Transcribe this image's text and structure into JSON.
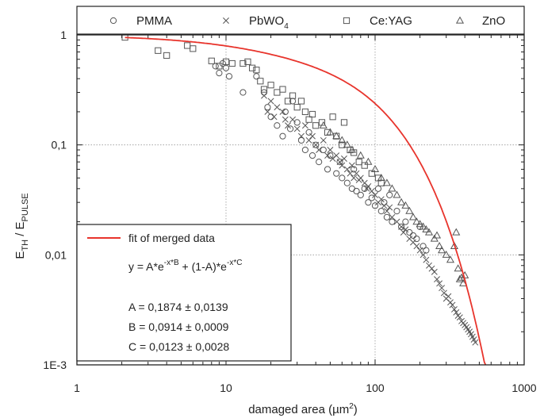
{
  "chart_data": {
    "type": "scatter",
    "title": "",
    "xlabel": "damaged area (µm²)",
    "xlabel_main": "damaged area (",
    "xlabel_unit": "µm",
    "xlabel_exp": "2",
    "xlabel_close": ")",
    "ylabel_main": "E",
    "ylabel_sub1": "TH",
    "ylabel_sep": " / E",
    "ylabel_sub2": "PULSE",
    "x_scale": "log",
    "y_scale": "log",
    "xlim": [
      1,
      1000
    ],
    "ylim": [
      0.001,
      1
    ],
    "x_ticks": [
      1,
      10,
      100,
      1000
    ],
    "x_tick_labels": [
      "1",
      "10",
      "100",
      "1000"
    ],
    "y_ticks": [
      0.001,
      0.01,
      0.1,
      1
    ],
    "y_tick_labels": [
      "1E-3",
      "0,01",
      "0,1",
      "1"
    ],
    "grid": true,
    "legend_position": "top",
    "series": [
      {
        "name": "PMMA",
        "name_main": "PMMA",
        "marker": "circle",
        "points": [
          [
            8.5,
            0.52
          ],
          [
            9,
            0.45
          ],
          [
            9.5,
            0.55
          ],
          [
            10,
            0.5
          ],
          [
            10.5,
            0.42
          ],
          [
            13,
            0.3
          ],
          [
            16,
            0.42
          ],
          [
            18,
            0.3
          ],
          [
            19,
            0.22
          ],
          [
            20,
            0.18
          ],
          [
            22,
            0.15
          ],
          [
            24,
            0.12
          ],
          [
            25,
            0.2
          ],
          [
            27,
            0.14
          ],
          [
            28,
            0.25
          ],
          [
            30,
            0.16
          ],
          [
            32,
            0.11
          ],
          [
            34,
            0.09
          ],
          [
            36,
            0.13
          ],
          [
            38,
            0.08
          ],
          [
            40,
            0.1
          ],
          [
            42,
            0.07
          ],
          [
            45,
            0.09
          ],
          [
            48,
            0.06
          ],
          [
            50,
            0.08
          ],
          [
            55,
            0.055
          ],
          [
            58,
            0.07
          ],
          [
            60,
            0.05
          ],
          [
            65,
            0.045
          ],
          [
            70,
            0.04
          ],
          [
            72,
            0.06
          ],
          [
            75,
            0.038
          ],
          [
            80,
            0.035
          ],
          [
            85,
            0.04
          ],
          [
            90,
            0.03
          ],
          [
            95,
            0.033
          ],
          [
            100,
            0.028
          ],
          [
            105,
            0.04
          ],
          [
            110,
            0.025
          ],
          [
            115,
            0.03
          ],
          [
            120,
            0.022
          ],
          [
            125,
            0.035
          ],
          [
            130,
            0.02
          ],
          [
            140,
            0.025
          ],
          [
            150,
            0.018
          ],
          [
            160,
            0.02
          ],
          [
            170,
            0.016
          ],
          [
            180,
            0.015
          ],
          [
            190,
            0.014
          ],
          [
            200,
            0.018
          ],
          [
            210,
            0.012
          ],
          [
            220,
            0.011
          ]
        ]
      },
      {
        "name": "PbWO4",
        "name_main": "PbWO",
        "name_sub": "4",
        "marker": "cross",
        "points": [
          [
            18,
            0.28
          ],
          [
            19,
            0.2
          ],
          [
            20,
            0.25
          ],
          [
            21,
            0.18
          ],
          [
            22,
            0.22
          ],
          [
            24,
            0.2
          ],
          [
            25,
            0.17
          ],
          [
            26,
            0.15
          ],
          [
            28,
            0.17
          ],
          [
            30,
            0.14
          ],
          [
            32,
            0.12
          ],
          [
            34,
            0.15
          ],
          [
            36,
            0.11
          ],
          [
            38,
            0.12
          ],
          [
            40,
            0.1
          ],
          [
            42,
            0.09
          ],
          [
            45,
            0.11
          ],
          [
            48,
            0.08
          ],
          [
            50,
            0.09
          ],
          [
            52,
            0.075
          ],
          [
            55,
            0.08
          ],
          [
            58,
            0.07
          ],
          [
            60,
            0.065
          ],
          [
            62,
            0.075
          ],
          [
            65,
            0.06
          ],
          [
            68,
            0.055
          ],
          [
            70,
            0.065
          ],
          [
            72,
            0.05
          ],
          [
            75,
            0.055
          ],
          [
            78,
            0.048
          ],
          [
            80,
            0.05
          ],
          [
            85,
            0.045
          ],
          [
            88,
            0.04
          ],
          [
            90,
            0.042
          ],
          [
            95,
            0.038
          ],
          [
            100,
            0.035
          ],
          [
            105,
            0.03
          ],
          [
            110,
            0.032
          ],
          [
            115,
            0.028
          ],
          [
            120,
            0.025
          ],
          [
            125,
            0.027
          ],
          [
            130,
            0.022
          ],
          [
            140,
            0.02
          ],
          [
            150,
            0.018
          ],
          [
            155,
            0.016
          ],
          [
            160,
            0.017
          ],
          [
            170,
            0.014
          ],
          [
            180,
            0.013
          ],
          [
            190,
            0.012
          ],
          [
            200,
            0.011
          ],
          [
            210,
            0.01
          ],
          [
            220,
            0.009
          ],
          [
            230,
            0.008
          ],
          [
            240,
            0.0075
          ],
          [
            250,
            0.007
          ],
          [
            260,
            0.006
          ],
          [
            270,
            0.0055
          ],
          [
            280,
            0.005
          ],
          [
            290,
            0.0045
          ],
          [
            300,
            0.004
          ],
          [
            310,
            0.0042
          ],
          [
            320,
            0.0037
          ],
          [
            330,
            0.0035
          ],
          [
            340,
            0.0032
          ],
          [
            350,
            0.003
          ],
          [
            360,
            0.0028
          ],
          [
            370,
            0.0027
          ],
          [
            380,
            0.0025
          ],
          [
            390,
            0.0024
          ],
          [
            400,
            0.0023
          ],
          [
            410,
            0.0022
          ],
          [
            420,
            0.0021
          ],
          [
            430,
            0.002
          ],
          [
            440,
            0.0019
          ],
          [
            450,
            0.0018
          ],
          [
            460,
            0.0017
          ],
          [
            470,
            0.0016
          ]
        ]
      },
      {
        "name": "Ce:YAG",
        "name_main": "Ce:YAG",
        "marker": "square",
        "points": [
          [
            2.1,
            0.95
          ],
          [
            3.5,
            0.72
          ],
          [
            4,
            0.65
          ],
          [
            5.5,
            0.8
          ],
          [
            6,
            0.75
          ],
          [
            8,
            0.58
          ],
          [
            9,
            0.52
          ],
          [
            10,
            0.57
          ],
          [
            11,
            0.55
          ],
          [
            13,
            0.55
          ],
          [
            14,
            0.57
          ],
          [
            15,
            0.5
          ],
          [
            16,
            0.48
          ],
          [
            17,
            0.38
          ],
          [
            18,
            0.32
          ],
          [
            20,
            0.35
          ],
          [
            22,
            0.3
          ],
          [
            24,
            0.32
          ],
          [
            26,
            0.25
          ],
          [
            28,
            0.28
          ],
          [
            30,
            0.22
          ],
          [
            32,
            0.25
          ],
          [
            34,
            0.2
          ],
          [
            36,
            0.17
          ],
          [
            38,
            0.19
          ],
          [
            40,
            0.15
          ],
          [
            44,
            0.16
          ],
          [
            48,
            0.13
          ],
          [
            52,
            0.18
          ],
          [
            55,
            0.12
          ],
          [
            60,
            0.1
          ],
          [
            62,
            0.16
          ],
          [
            68,
            0.09
          ],
          [
            72,
            0.085
          ],
          [
            78,
            0.07
          ],
          [
            85,
            0.065
          ],
          [
            95,
            0.055
          ],
          [
            105,
            0.05
          ],
          [
            110,
            0.045
          ]
        ]
      },
      {
        "name": "ZnO",
        "name_main": "ZnO",
        "marker": "triangle",
        "points": [
          [
            45,
            0.15
          ],
          [
            50,
            0.13
          ],
          [
            55,
            0.12
          ],
          [
            60,
            0.11
          ],
          [
            65,
            0.1
          ],
          [
            70,
            0.09
          ],
          [
            80,
            0.08
          ],
          [
            90,
            0.07
          ],
          [
            100,
            0.06
          ],
          [
            110,
            0.05
          ],
          [
            120,
            0.045
          ],
          [
            130,
            0.04
          ],
          [
            140,
            0.035
          ],
          [
            150,
            0.03
          ],
          [
            160,
            0.028
          ],
          [
            170,
            0.025
          ],
          [
            180,
            0.022
          ],
          [
            190,
            0.02
          ],
          [
            200,
            0.019
          ],
          [
            210,
            0.018
          ],
          [
            220,
            0.017
          ],
          [
            230,
            0.016
          ],
          [
            250,
            0.014
          ],
          [
            260,
            0.015
          ],
          [
            270,
            0.012
          ],
          [
            280,
            0.011
          ],
          [
            300,
            0.01
          ],
          [
            320,
            0.009
          ],
          [
            340,
            0.012
          ],
          [
            350,
            0.016
          ],
          [
            360,
            0.0075
          ],
          [
            370,
            0.006
          ],
          [
            380,
            0.0062
          ],
          [
            390,
            0.0055
          ],
          [
            400,
            0.0065
          ]
        ]
      }
    ],
    "fit": {
      "name": "fit of merged data",
      "color": "#e8342c",
      "formula_parts": {
        "prefix": "y = A*e",
        "exp1": "-x*B",
        "middle": " + (1-A)*e",
        "exp2": "-x*C"
      },
      "params": {
        "A": 0.1874,
        "B": 0.0914,
        "C": 0.0123
      },
      "param_labels": [
        "A = 0,1874 ± 0,0139",
        "B = 0,0914 ± 0,0009",
        "C = 0,0123 ± 0,0028"
      ]
    },
    "colors": {
      "marker": "#555555",
      "axis": "#222222",
      "grid": "#999999"
    }
  }
}
